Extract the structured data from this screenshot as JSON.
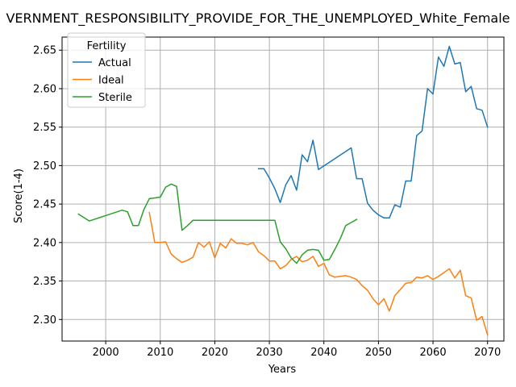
{
  "chart_data": {
    "type": "line",
    "title": "VERNMENT_RESPONSIBILITY_PROVIDE_FOR_THE_UNEMPLOYED_White_Female",
    "xlabel": "Years",
    "ylabel": "Score(1-4)",
    "xlim": [
      1992,
      2073
    ],
    "ylim": [
      2.272,
      2.667
    ],
    "xticks": [
      2000,
      2010,
      2020,
      2030,
      2040,
      2050,
      2060,
      2070
    ],
    "yticks": [
      2.3,
      2.35,
      2.4,
      2.45,
      2.5,
      2.55,
      2.6,
      2.65
    ],
    "xtick_labels": [
      "2000",
      "2010",
      "2020",
      "2030",
      "2040",
      "2050",
      "2060",
      "2070"
    ],
    "ytick_labels": [
      "2.30",
      "2.35",
      "2.40",
      "2.45",
      "2.50",
      "2.55",
      "2.60",
      "2.65"
    ],
    "grid": true,
    "legend": {
      "title": "Fertility",
      "placement": "top-left"
    },
    "series": [
      {
        "name": "Actual",
        "color": "#1f77b4",
        "x": [
          2028,
          2029,
          2030,
          2031,
          2032,
          2033,
          2034,
          2035,
          2036,
          2037,
          2038,
          2039,
          2045,
          2046,
          2047,
          2048,
          2049,
          2050,
          2051,
          2052,
          2053,
          2054,
          2055,
          2056,
          2057,
          2058,
          2059,
          2060,
          2061,
          2062,
          2063,
          2064,
          2065,
          2066,
          2067,
          2068,
          2069,
          2070
        ],
        "y": [
          2.496,
          2.496,
          2.484,
          2.47,
          2.452,
          2.475,
          2.487,
          2.468,
          2.514,
          2.505,
          2.533,
          2.495,
          2.523,
          2.483,
          2.483,
          2.451,
          2.442,
          2.436,
          2.432,
          2.432,
          2.449,
          2.446,
          2.48,
          2.48,
          2.539,
          2.545,
          2.6,
          2.593,
          2.641,
          2.629,
          2.655,
          2.632,
          2.634,
          2.596,
          2.603,
          2.574,
          2.572,
          2.55
        ]
      },
      {
        "name": "Ideal",
        "color": "#ff7f0e",
        "x": [
          2008,
          2009,
          2010,
          2011,
          2012,
          2013,
          2014,
          2015,
          2016,
          2017,
          2018,
          2019,
          2020,
          2021,
          2022,
          2023,
          2024,
          2025,
          2026,
          2027,
          2028,
          2029,
          2030,
          2031,
          2032,
          2033,
          2034,
          2035,
          2036,
          2037,
          2038,
          2039,
          2040,
          2041,
          2042,
          2043,
          2044,
          2045,
          2046,
          2047,
          2048,
          2049,
          2050,
          2051,
          2052,
          2053,
          2054,
          2055,
          2056,
          2057,
          2058,
          2059,
          2060,
          2061,
          2062,
          2063,
          2064,
          2065,
          2066,
          2067,
          2068,
          2069,
          2070
        ],
        "y": [
          2.439,
          2.4,
          2.4,
          2.401,
          2.385,
          2.379,
          2.374,
          2.377,
          2.381,
          2.4,
          2.394,
          2.401,
          2.38,
          2.399,
          2.393,
          2.405,
          2.399,
          2.399,
          2.397,
          2.4,
          2.388,
          2.383,
          2.376,
          2.376,
          2.366,
          2.37,
          2.378,
          2.382,
          2.375,
          2.377,
          2.382,
          2.369,
          2.373,
          2.358,
          2.355,
          2.356,
          2.357,
          2.355,
          2.352,
          2.344,
          2.338,
          2.327,
          2.319,
          2.327,
          2.311,
          2.331,
          2.339,
          2.347,
          2.348,
          2.355,
          2.354,
          2.357,
          2.352,
          2.356,
          2.361,
          2.366,
          2.354,
          2.364,
          2.331,
          2.328,
          2.299,
          2.304,
          2.28
        ]
      },
      {
        "name": "Sterile",
        "color": "#2ca02c",
        "x": [
          1995,
          1997,
          2003,
          2004,
          2005,
          2006,
          2007,
          2008,
          2009,
          2010,
          2011,
          2012,
          2013,
          2014,
          2015,
          2016,
          2017,
          2031,
          2032,
          2033,
          2034,
          2035,
          2036,
          2037,
          2038,
          2039,
          2040,
          2041,
          2042,
          2043,
          2044,
          2045,
          2046
        ],
        "y": [
          2.437,
          2.428,
          2.442,
          2.44,
          2.422,
          2.422,
          2.443,
          2.457,
          2.458,
          2.459,
          2.472,
          2.476,
          2.473,
          2.416,
          2.422,
          2.429,
          2.429,
          2.429,
          2.401,
          2.392,
          2.38,
          2.373,
          2.384,
          2.39,
          2.391,
          2.39,
          2.377,
          2.378,
          2.391,
          2.405,
          2.422,
          2.426,
          2.43
        ]
      }
    ]
  }
}
